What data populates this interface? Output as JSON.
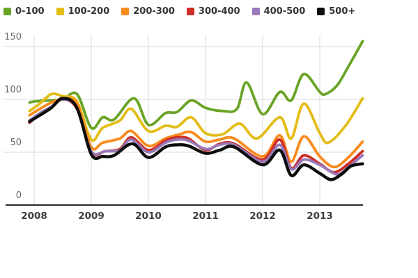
{
  "chart_data": {
    "type": "line",
    "legend_position": "top",
    "grid": true,
    "x_ticks": [
      "2008",
      "2009",
      "2010",
      "2011",
      "2012",
      "2013"
    ],
    "y_ticks": [
      0,
      50,
      100,
      150
    ],
    "x_range": [
      2007.92,
      2013.75
    ],
    "y_axis": {
      "min": 0,
      "max": 150
    },
    "colors": {
      "grid": "#d8d8d8",
      "axis": "#2b2b2b",
      "tick_text": "#666666",
      "year_text": "#3c3c3c"
    },
    "series": [
      {
        "name": "0-100",
        "color": "#6aa426",
        "points": [
          [
            2007.92,
            97
          ],
          [
            2008.0,
            98
          ],
          [
            2008.25,
            99
          ],
          [
            2008.5,
            100
          ],
          [
            2008.75,
            105
          ],
          [
            2009.0,
            73
          ],
          [
            2009.2,
            83
          ],
          [
            2009.4,
            81
          ],
          [
            2009.75,
            101
          ],
          [
            2010.0,
            76
          ],
          [
            2010.3,
            87
          ],
          [
            2010.5,
            88
          ],
          [
            2010.75,
            99
          ],
          [
            2011.0,
            92
          ],
          [
            2011.3,
            89
          ],
          [
            2011.55,
            91
          ],
          [
            2011.72,
            116
          ],
          [
            2012.0,
            86
          ],
          [
            2012.3,
            107
          ],
          [
            2012.5,
            99
          ],
          [
            2012.72,
            124
          ],
          [
            2013.0,
            107
          ],
          [
            2013.1,
            105
          ],
          [
            2013.3,
            113
          ],
          [
            2013.5,
            131
          ],
          [
            2013.75,
            155
          ]
        ]
      },
      {
        "name": "100-200",
        "color": "#e3bd16",
        "points": [
          [
            2007.92,
            89
          ],
          [
            2008.1,
            96
          ],
          [
            2008.3,
            105
          ],
          [
            2008.5,
            103
          ],
          [
            2008.75,
            98
          ],
          [
            2009.0,
            62
          ],
          [
            2009.2,
            73
          ],
          [
            2009.5,
            80
          ],
          [
            2009.7,
            91
          ],
          [
            2010.0,
            70
          ],
          [
            2010.3,
            75
          ],
          [
            2010.5,
            74
          ],
          [
            2010.75,
            83
          ],
          [
            2011.0,
            68
          ],
          [
            2011.3,
            67
          ],
          [
            2011.6,
            77
          ],
          [
            2011.9,
            63
          ],
          [
            2012.3,
            83
          ],
          [
            2012.5,
            63
          ],
          [
            2012.72,
            96
          ],
          [
            2013.0,
            68
          ],
          [
            2013.15,
            59
          ],
          [
            2013.45,
            75
          ],
          [
            2013.75,
            101
          ]
        ]
      },
      {
        "name": "200-300",
        "color": "#f98a1d",
        "points": [
          [
            2007.92,
            85
          ],
          [
            2008.1,
            91
          ],
          [
            2008.3,
            97
          ],
          [
            2008.5,
            100
          ],
          [
            2008.75,
            96
          ],
          [
            2009.0,
            55
          ],
          [
            2009.2,
            59
          ],
          [
            2009.5,
            63
          ],
          [
            2009.7,
            70
          ],
          [
            2010.0,
            56
          ],
          [
            2010.3,
            63
          ],
          [
            2010.55,
            67
          ],
          [
            2010.75,
            69
          ],
          [
            2011.0,
            60
          ],
          [
            2011.25,
            62
          ],
          [
            2011.5,
            63
          ],
          [
            2012.0,
            46
          ],
          [
            2012.3,
            66
          ],
          [
            2012.5,
            41
          ],
          [
            2012.72,
            65
          ],
          [
            2013.0,
            46
          ],
          [
            2013.25,
            36
          ],
          [
            2013.5,
            45
          ],
          [
            2013.75,
            60
          ]
        ]
      },
      {
        "name": "300-400",
        "color": "#ce2d26",
        "points": [
          [
            2007.92,
            78
          ],
          [
            2008.1,
            86
          ],
          [
            2008.3,
            92
          ],
          [
            2008.5,
            100
          ],
          [
            2008.75,
            91
          ],
          [
            2009.0,
            50
          ],
          [
            2009.25,
            51
          ],
          [
            2009.5,
            53
          ],
          [
            2009.7,
            64
          ],
          [
            2010.0,
            52
          ],
          [
            2010.3,
            61
          ],
          [
            2010.5,
            64
          ],
          [
            2010.7,
            63
          ],
          [
            2011.0,
            52
          ],
          [
            2011.25,
            58
          ],
          [
            2011.5,
            58
          ],
          [
            2012.0,
            43
          ],
          [
            2012.3,
            62
          ],
          [
            2012.5,
            35
          ],
          [
            2012.72,
            47
          ],
          [
            2013.0,
            39
          ],
          [
            2013.25,
            31
          ],
          [
            2013.5,
            39
          ],
          [
            2013.75,
            51
          ]
        ]
      },
      {
        "name": "400-500",
        "color": "#9879b9",
        "points": [
          [
            2007.92,
            80
          ],
          [
            2008.1,
            87
          ],
          [
            2008.3,
            93
          ],
          [
            2008.5,
            100
          ],
          [
            2008.75,
            92
          ],
          [
            2009.0,
            51
          ],
          [
            2009.25,
            51
          ],
          [
            2009.5,
            52
          ],
          [
            2009.7,
            62
          ],
          [
            2010.0,
            50
          ],
          [
            2010.3,
            59
          ],
          [
            2010.5,
            62
          ],
          [
            2010.7,
            61
          ],
          [
            2011.0,
            53
          ],
          [
            2011.25,
            57
          ],
          [
            2011.5,
            57
          ],
          [
            2012.0,
            41
          ],
          [
            2012.3,
            57
          ],
          [
            2012.5,
            34
          ],
          [
            2012.72,
            43
          ],
          [
            2013.0,
            38
          ],
          [
            2013.3,
            29
          ],
          [
            2013.5,
            36
          ],
          [
            2013.75,
            47
          ]
        ]
      },
      {
        "name": "500+",
        "color": "#0d0d0d",
        "points": [
          [
            2007.92,
            79
          ],
          [
            2008.1,
            85
          ],
          [
            2008.3,
            92
          ],
          [
            2008.5,
            101
          ],
          [
            2008.75,
            92
          ],
          [
            2009.0,
            48
          ],
          [
            2009.2,
            46
          ],
          [
            2009.4,
            47
          ],
          [
            2009.72,
            58
          ],
          [
            2010.0,
            45
          ],
          [
            2010.3,
            55
          ],
          [
            2010.5,
            57
          ],
          [
            2010.7,
            56
          ],
          [
            2011.0,
            49
          ],
          [
            2011.25,
            52
          ],
          [
            2011.5,
            55
          ],
          [
            2012.0,
            38
          ],
          [
            2012.3,
            52
          ],
          [
            2012.5,
            28
          ],
          [
            2012.72,
            38
          ],
          [
            2013.0,
            30
          ],
          [
            2013.2,
            24
          ],
          [
            2013.4,
            30
          ],
          [
            2013.55,
            37
          ],
          [
            2013.75,
            39
          ]
        ]
      }
    ]
  }
}
